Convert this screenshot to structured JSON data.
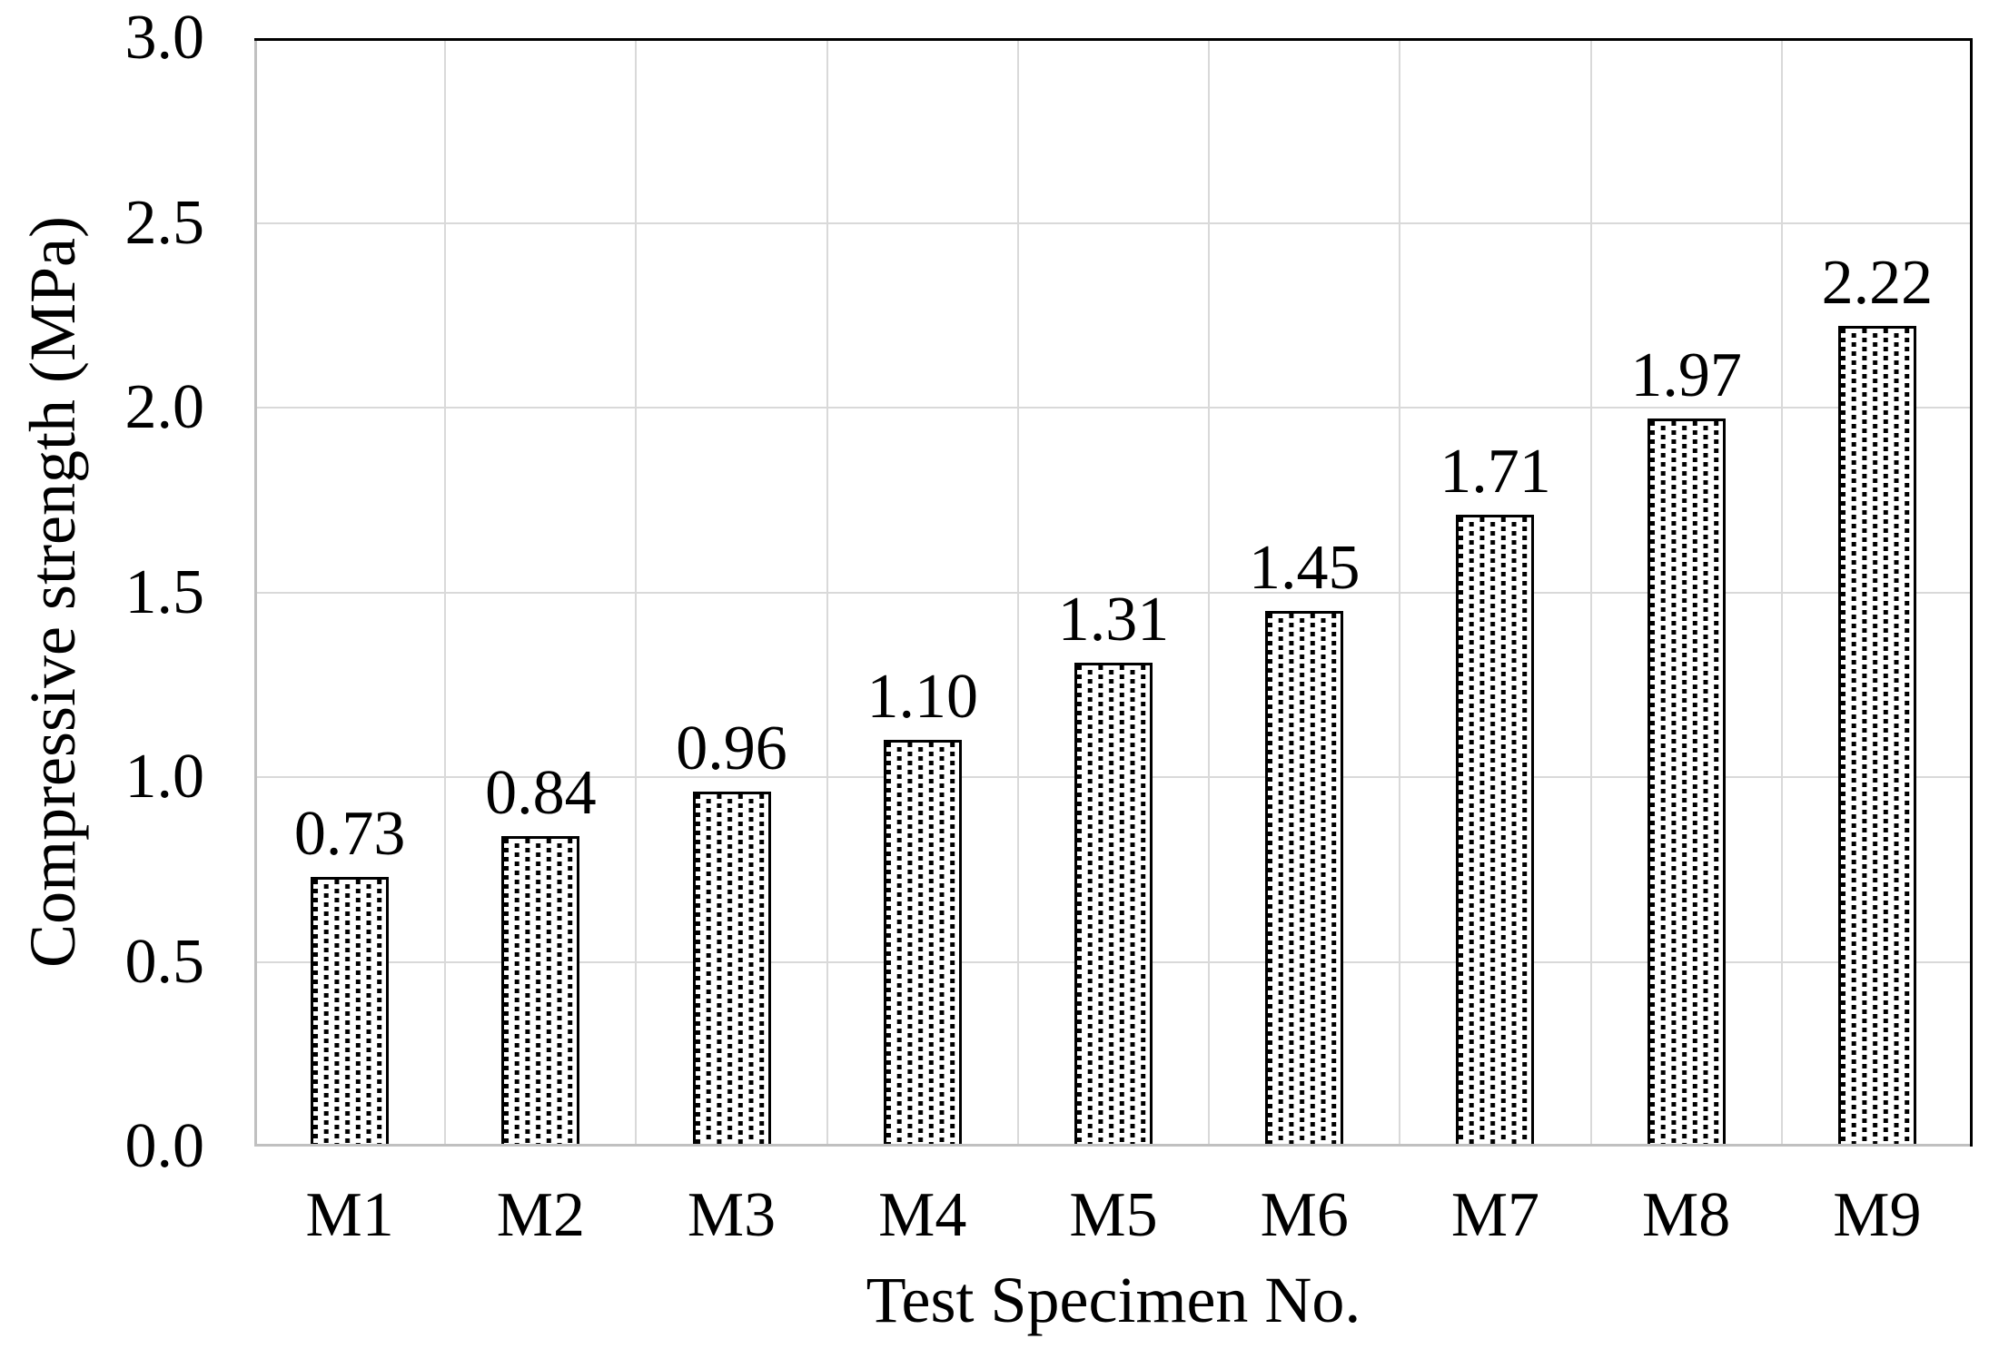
{
  "chart_data": {
    "type": "bar",
    "title": "",
    "xlabel": "Test Specimen No.",
    "ylabel": "Compressive strength (MPa)",
    "categories": [
      "M1",
      "M2",
      "M3",
      "M4",
      "M5",
      "M6",
      "M7",
      "M8",
      "M9"
    ],
    "values": [
      0.73,
      0.84,
      0.96,
      1.1,
      1.31,
      1.45,
      1.71,
      1.97,
      2.22
    ],
    "data_labels": [
      "0.73",
      "0.84",
      "0.96",
      "1.10",
      "1.31",
      "1.45",
      "1.71",
      "1.97",
      "2.22"
    ],
    "ylim": [
      0.0,
      3.0
    ],
    "ytick_step": 0.5,
    "yticks": [
      "0.0",
      "0.5",
      "1.0",
      "1.5",
      "2.0",
      "2.5",
      "3.0"
    ],
    "grid": true,
    "legend": "none",
    "bar_fill_style": "white with black square-dot stipple pattern",
    "colors": {
      "bar_border": "#000000",
      "dot": "#000000",
      "gridline": "#d9d9d9",
      "axis_line": "#c0c0c0",
      "frame": "#000000",
      "text": "#000000",
      "background": "#ffffff"
    }
  }
}
